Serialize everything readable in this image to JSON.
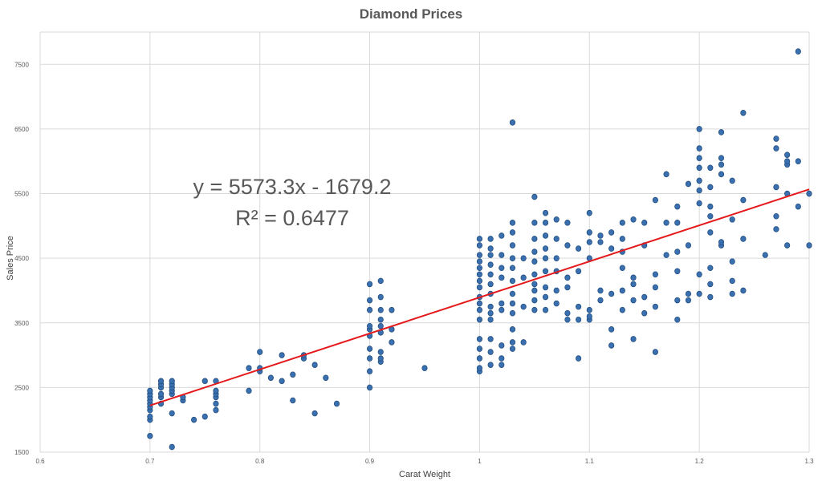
{
  "chart_data": {
    "type": "scatter",
    "title": "Diamond Prices",
    "xlabel": "Carat Weight",
    "ylabel": "Sales Price",
    "xlim": [
      0.6,
      1.3
    ],
    "ylim": [
      1500,
      8000
    ],
    "x_ticks": [
      "0.6",
      "0.7",
      "0.8",
      "0.9",
      "1",
      "1.1",
      "1.2",
      "1.3"
    ],
    "y_ticks": [
      "1500",
      "2500",
      "3500",
      "4500",
      "5500",
      "6500",
      "7500"
    ],
    "grid": true,
    "legend": "none",
    "trendline": {
      "type": "linear",
      "slope": 5573.3,
      "intercept": -1679.2,
      "equation_text": "y = 5573.3x - 1679.2",
      "r2_text": "R² = 0.6477",
      "color": "#e41a1c"
    },
    "marker_color": "#3a6fb0",
    "series": [
      {
        "points": [
          [
            0.7,
            1750
          ],
          [
            0.7,
            2000
          ],
          [
            0.7,
            2050
          ],
          [
            0.7,
            2150
          ],
          [
            0.7,
            2200
          ],
          [
            0.7,
            2250
          ],
          [
            0.7,
            2300
          ],
          [
            0.7,
            2350
          ],
          [
            0.7,
            2400
          ],
          [
            0.7,
            2450
          ],
          [
            0.71,
            2250
          ],
          [
            0.71,
            2350
          ],
          [
            0.71,
            2400
          ],
          [
            0.71,
            2500
          ],
          [
            0.71,
            2550
          ],
          [
            0.71,
            2600
          ],
          [
            0.72,
            1580
          ],
          [
            0.72,
            2100
          ],
          [
            0.72,
            2400
          ],
          [
            0.72,
            2450
          ],
          [
            0.72,
            2500
          ],
          [
            0.72,
            2550
          ],
          [
            0.72,
            2600
          ],
          [
            0.73,
            2300
          ],
          [
            0.73,
            2350
          ],
          [
            0.74,
            2000
          ],
          [
            0.75,
            2050
          ],
          [
            0.75,
            2600
          ],
          [
            0.76,
            2150
          ],
          [
            0.76,
            2250
          ],
          [
            0.76,
            2350
          ],
          [
            0.76,
            2400
          ],
          [
            0.76,
            2450
          ],
          [
            0.76,
            2600
          ],
          [
            0.79,
            2450
          ],
          [
            0.79,
            2800
          ],
          [
            0.8,
            2750
          ],
          [
            0.8,
            2800
          ],
          [
            0.8,
            3050
          ],
          [
            0.81,
            2650
          ],
          [
            0.82,
            2600
          ],
          [
            0.82,
            3000
          ],
          [
            0.83,
            2300
          ],
          [
            0.83,
            2700
          ],
          [
            0.84,
            2950
          ],
          [
            0.84,
            3000
          ],
          [
            0.85,
            2100
          ],
          [
            0.85,
            2850
          ],
          [
            0.86,
            2650
          ],
          [
            0.87,
            2250
          ],
          [
            0.9,
            2500
          ],
          [
            0.9,
            2750
          ],
          [
            0.9,
            2950
          ],
          [
            0.9,
            3100
          ],
          [
            0.9,
            3300
          ],
          [
            0.9,
            3400
          ],
          [
            0.9,
            3450
          ],
          [
            0.9,
            3700
          ],
          [
            0.9,
            3850
          ],
          [
            0.9,
            4100
          ],
          [
            0.91,
            2900
          ],
          [
            0.91,
            2950
          ],
          [
            0.91,
            3050
          ],
          [
            0.91,
            3350
          ],
          [
            0.91,
            3450
          ],
          [
            0.91,
            3550
          ],
          [
            0.91,
            3700
          ],
          [
            0.91,
            3900
          ],
          [
            0.91,
            4150
          ],
          [
            0.92,
            3200
          ],
          [
            0.92,
            3400
          ],
          [
            0.92,
            3700
          ],
          [
            0.95,
            2800
          ],
          [
            1.0,
            2750
          ],
          [
            1.0,
            2800
          ],
          [
            1.0,
            2950
          ],
          [
            1.0,
            3100
          ],
          [
            1.0,
            3250
          ],
          [
            1.0,
            3550
          ],
          [
            1.0,
            3700
          ],
          [
            1.0,
            3800
          ],
          [
            1.0,
            3900
          ],
          [
            1.0,
            4050
          ],
          [
            1.0,
            4150
          ],
          [
            1.0,
            4250
          ],
          [
            1.0,
            4350
          ],
          [
            1.0,
            4450
          ],
          [
            1.0,
            4550
          ],
          [
            1.0,
            4700
          ],
          [
            1.0,
            4800
          ],
          [
            1.01,
            2850
          ],
          [
            1.01,
            3050
          ],
          [
            1.01,
            3250
          ],
          [
            1.01,
            3550
          ],
          [
            1.01,
            3650
          ],
          [
            1.01,
            3750
          ],
          [
            1.01,
            3950
          ],
          [
            1.01,
            4100
          ],
          [
            1.01,
            4250
          ],
          [
            1.01,
            4400
          ],
          [
            1.01,
            4550
          ],
          [
            1.01,
            4650
          ],
          [
            1.01,
            4800
          ],
          [
            1.02,
            2850
          ],
          [
            1.02,
            2950
          ],
          [
            1.02,
            3150
          ],
          [
            1.02,
            3700
          ],
          [
            1.02,
            3800
          ],
          [
            1.02,
            4200
          ],
          [
            1.02,
            4350
          ],
          [
            1.02,
            4550
          ],
          [
            1.02,
            4850
          ],
          [
            1.03,
            3100
          ],
          [
            1.03,
            3200
          ],
          [
            1.03,
            3400
          ],
          [
            1.03,
            3650
          ],
          [
            1.03,
            3800
          ],
          [
            1.03,
            3950
          ],
          [
            1.03,
            4150
          ],
          [
            1.03,
            4350
          ],
          [
            1.03,
            4500
          ],
          [
            1.03,
            4700
          ],
          [
            1.03,
            4900
          ],
          [
            1.03,
            5050
          ],
          [
            1.03,
            6600
          ],
          [
            1.04,
            3200
          ],
          [
            1.04,
            3750
          ],
          [
            1.04,
            4200
          ],
          [
            1.04,
            4500
          ],
          [
            1.05,
            3700
          ],
          [
            1.05,
            3850
          ],
          [
            1.05,
            4000
          ],
          [
            1.05,
            4100
          ],
          [
            1.05,
            4250
          ],
          [
            1.05,
            4450
          ],
          [
            1.05,
            4600
          ],
          [
            1.05,
            4800
          ],
          [
            1.05,
            5050
          ],
          [
            1.05,
            5450
          ],
          [
            1.06,
            3700
          ],
          [
            1.06,
            3900
          ],
          [
            1.06,
            4050
          ],
          [
            1.06,
            4300
          ],
          [
            1.06,
            4500
          ],
          [
            1.06,
            4650
          ],
          [
            1.06,
            4850
          ],
          [
            1.06,
            5050
          ],
          [
            1.06,
            5200
          ],
          [
            1.07,
            3800
          ],
          [
            1.07,
            4000
          ],
          [
            1.07,
            4300
          ],
          [
            1.07,
            4500
          ],
          [
            1.07,
            4800
          ],
          [
            1.07,
            5100
          ],
          [
            1.08,
            3550
          ],
          [
            1.08,
            3650
          ],
          [
            1.08,
            4050
          ],
          [
            1.08,
            4200
          ],
          [
            1.08,
            4700
          ],
          [
            1.08,
            5050
          ],
          [
            1.09,
            2950
          ],
          [
            1.09,
            3550
          ],
          [
            1.09,
            3750
          ],
          [
            1.09,
            4300
          ],
          [
            1.09,
            4650
          ],
          [
            1.1,
            3550
          ],
          [
            1.1,
            3600
          ],
          [
            1.1,
            3700
          ],
          [
            1.1,
            4500
          ],
          [
            1.1,
            4750
          ],
          [
            1.1,
            4900
          ],
          [
            1.1,
            5200
          ],
          [
            1.11,
            3850
          ],
          [
            1.11,
            4000
          ],
          [
            1.11,
            4750
          ],
          [
            1.11,
            4850
          ],
          [
            1.12,
            3150
          ],
          [
            1.12,
            3400
          ],
          [
            1.12,
            3950
          ],
          [
            1.12,
            4650
          ],
          [
            1.12,
            4900
          ],
          [
            1.13,
            3700
          ],
          [
            1.13,
            4000
          ],
          [
            1.13,
            4350
          ],
          [
            1.13,
            4600
          ],
          [
            1.13,
            4800
          ],
          [
            1.13,
            5050
          ],
          [
            1.14,
            3250
          ],
          [
            1.14,
            3850
          ],
          [
            1.14,
            4100
          ],
          [
            1.14,
            4200
          ],
          [
            1.14,
            5100
          ],
          [
            1.15,
            3650
          ],
          [
            1.15,
            3900
          ],
          [
            1.15,
            4700
          ],
          [
            1.15,
            5050
          ],
          [
            1.16,
            3050
          ],
          [
            1.16,
            3750
          ],
          [
            1.16,
            4050
          ],
          [
            1.16,
            4250
          ],
          [
            1.16,
            5400
          ],
          [
            1.17,
            4550
          ],
          [
            1.17,
            5050
          ],
          [
            1.17,
            5800
          ],
          [
            1.18,
            3550
          ],
          [
            1.18,
            3850
          ],
          [
            1.18,
            4300
          ],
          [
            1.18,
            4600
          ],
          [
            1.18,
            5050
          ],
          [
            1.18,
            5300
          ],
          [
            1.19,
            3850
          ],
          [
            1.19,
            3950
          ],
          [
            1.19,
            4700
          ],
          [
            1.19,
            5650
          ],
          [
            1.2,
            3950
          ],
          [
            1.2,
            4250
          ],
          [
            1.2,
            5350
          ],
          [
            1.2,
            5550
          ],
          [
            1.2,
            5700
          ],
          [
            1.2,
            5900
          ],
          [
            1.2,
            6050
          ],
          [
            1.2,
            6200
          ],
          [
            1.2,
            6500
          ],
          [
            1.21,
            3900
          ],
          [
            1.21,
            4100
          ],
          [
            1.21,
            4350
          ],
          [
            1.21,
            4900
          ],
          [
            1.21,
            5150
          ],
          [
            1.21,
            5300
          ],
          [
            1.21,
            5600
          ],
          [
            1.21,
            5900
          ],
          [
            1.22,
            4700
          ],
          [
            1.22,
            4750
          ],
          [
            1.22,
            5800
          ],
          [
            1.22,
            5950
          ],
          [
            1.22,
            6050
          ],
          [
            1.22,
            6450
          ],
          [
            1.23,
            3950
          ],
          [
            1.23,
            4150
          ],
          [
            1.23,
            4450
          ],
          [
            1.23,
            5100
          ],
          [
            1.23,
            5700
          ],
          [
            1.24,
            4000
          ],
          [
            1.24,
            4800
          ],
          [
            1.24,
            5400
          ],
          [
            1.24,
            6750
          ],
          [
            1.26,
            4550
          ],
          [
            1.27,
            4950
          ],
          [
            1.27,
            5150
          ],
          [
            1.27,
            5600
          ],
          [
            1.27,
            6200
          ],
          [
            1.27,
            6350
          ],
          [
            1.28,
            4700
          ],
          [
            1.28,
            5500
          ],
          [
            1.28,
            5950
          ],
          [
            1.28,
            6000
          ],
          [
            1.28,
            6100
          ],
          [
            1.29,
            5300
          ],
          [
            1.29,
            6000
          ],
          [
            1.29,
            7700
          ],
          [
            1.3,
            4700
          ],
          [
            1.3,
            5500
          ]
        ]
      }
    ]
  }
}
